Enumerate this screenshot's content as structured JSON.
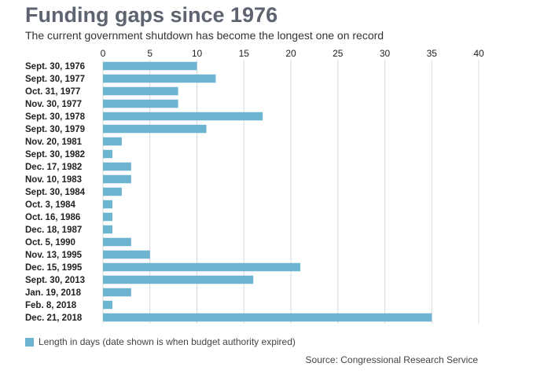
{
  "header": {
    "title": "Funding gaps since 1976",
    "subtitle": "The current government shutdown has become the longest one on record"
  },
  "legend": {
    "label": "Length in days (date shown is when budget authority expired)"
  },
  "source": "Source: Congressional Research Service",
  "colors": {
    "bar": "#6cb4cf",
    "grid": "#d9d9d9"
  },
  "chart_data": {
    "type": "bar",
    "orientation": "horizontal",
    "title": "Funding gaps since 1976",
    "subtitle": "The current government shutdown has become the longest one on record",
    "xlabel": "",
    "ylabel": "",
    "xlim": [
      0,
      40
    ],
    "xticks": [
      0,
      5,
      10,
      15,
      20,
      25,
      30,
      35,
      40
    ],
    "x_axis_position": "top",
    "grid": true,
    "legend_position": "bottom-left",
    "categories": [
      "Sept. 30, 1976",
      "Sept. 30, 1977",
      "Oct. 31, 1977",
      "Nov. 30, 1977",
      "Sept. 30, 1978",
      "Sept. 30, 1979",
      "Nov. 20, 1981",
      "Sept. 30, 1982",
      "Dec. 17, 1982",
      "Nov. 10, 1983",
      "Sept. 30, 1984",
      "Oct. 3, 1984",
      "Oct. 16, 1986",
      "Dec. 18, 1987",
      "Oct. 5, 1990",
      "Nov. 13, 1995",
      "Dec. 15, 1995",
      "Sept. 30, 2013",
      "Jan. 19, 2018",
      "Feb. 8, 2018",
      "Dec. 21, 2018"
    ],
    "series": [
      {
        "name": "Length in days (date shown is when budget authority expired)",
        "values": [
          10,
          12,
          8,
          8,
          17,
          11,
          2,
          1,
          3,
          3,
          2,
          1,
          1,
          1,
          3,
          5,
          21,
          16,
          3,
          1,
          35
        ]
      }
    ]
  }
}
